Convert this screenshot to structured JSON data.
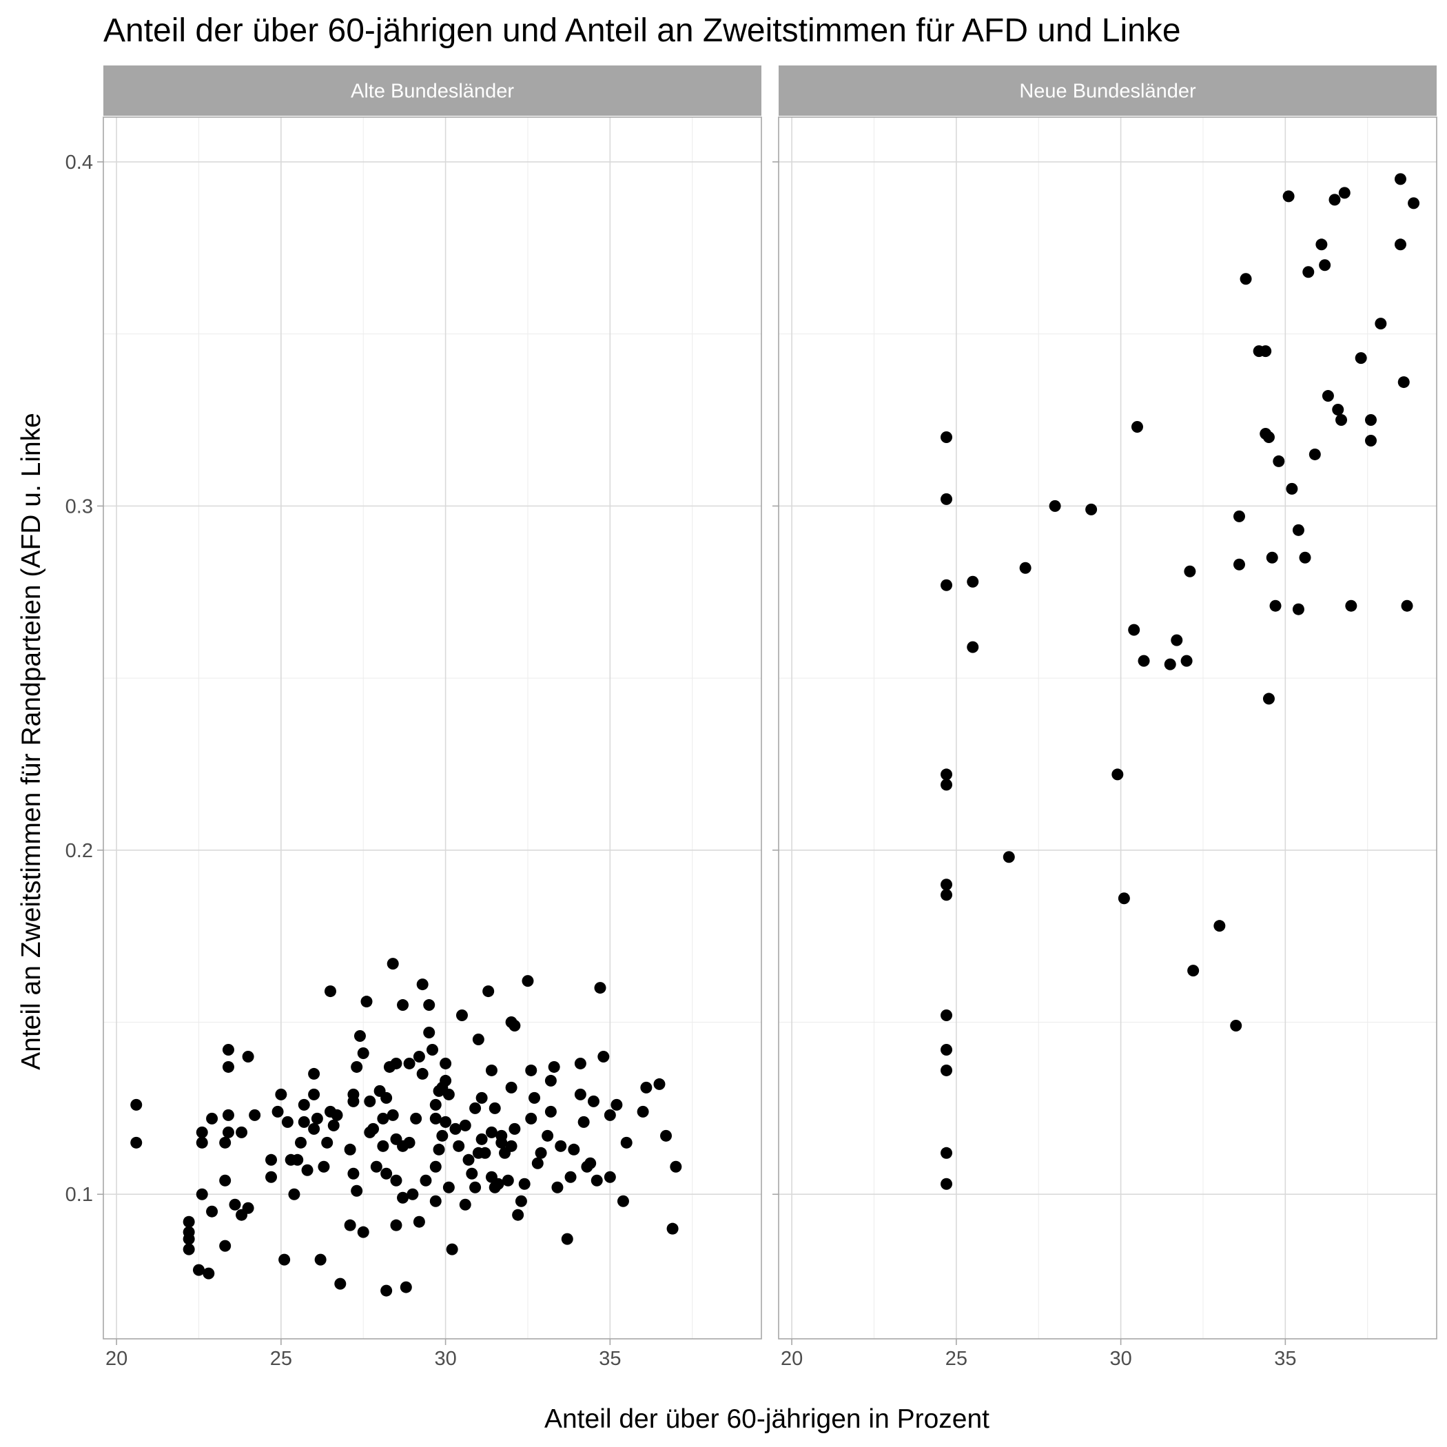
{
  "chart_data": {
    "type": "scatter",
    "title": "Anteil der über 60-jährigen und Anteil an Zweitstimmen für AFD und Linke",
    "xlabel": "Anteil der über 60-jährigen in Prozent",
    "ylabel": "Anteil an Zweitstimmen für Randparteien (AFD u. Linke",
    "xlim": [
      19.6,
      39.6
    ],
    "ylim": [
      0.058,
      0.413
    ],
    "x_ticks": [
      20,
      25,
      30,
      35
    ],
    "x_tick_labels": [
      "20",
      "25",
      "30",
      "35"
    ],
    "y_ticks": [
      0.1,
      0.2,
      0.3,
      0.4
    ],
    "y_tick_labels": [
      "0.1",
      "0.2",
      "0.3",
      "0.4"
    ],
    "grid": true,
    "colors": {
      "point": "#000000",
      "strip": "#a6a6a6",
      "grid": "#d9d9d9"
    },
    "facets": [
      {
        "label": "Alte Bundesländer",
        "points": [
          [
            20.6,
            0.126
          ],
          [
            20.6,
            0.115
          ],
          [
            22.2,
            0.087
          ],
          [
            22.2,
            0.084
          ],
          [
            22.2,
            0.089
          ],
          [
            22.2,
            0.092
          ],
          [
            22.5,
            0.078
          ],
          [
            22.6,
            0.1
          ],
          [
            22.6,
            0.115
          ],
          [
            22.6,
            0.118
          ],
          [
            22.8,
            0.077
          ],
          [
            22.9,
            0.095
          ],
          [
            22.9,
            0.122
          ],
          [
            23.3,
            0.085
          ],
          [
            23.3,
            0.104
          ],
          [
            23.3,
            0.115
          ],
          [
            23.4,
            0.118
          ],
          [
            23.4,
            0.123
          ],
          [
            23.4,
            0.137
          ],
          [
            23.4,
            0.142
          ],
          [
            23.6,
            0.097
          ],
          [
            23.8,
            0.094
          ],
          [
            23.8,
            0.118
          ],
          [
            24.0,
            0.096
          ],
          [
            24.0,
            0.14
          ],
          [
            24.2,
            0.123
          ],
          [
            24.7,
            0.105
          ],
          [
            24.7,
            0.11
          ],
          [
            24.9,
            0.124
          ],
          [
            25.0,
            0.129
          ],
          [
            25.1,
            0.081
          ],
          [
            25.2,
            0.121
          ],
          [
            25.3,
            0.11
          ],
          [
            25.4,
            0.1
          ],
          [
            25.5,
            0.11
          ],
          [
            25.6,
            0.115
          ],
          [
            25.7,
            0.126
          ],
          [
            25.7,
            0.121
          ],
          [
            25.8,
            0.107
          ],
          [
            26.0,
            0.135
          ],
          [
            26.0,
            0.119
          ],
          [
            26.0,
            0.129
          ],
          [
            26.1,
            0.122
          ],
          [
            26.2,
            0.081
          ],
          [
            26.3,
            0.108
          ],
          [
            26.4,
            0.115
          ],
          [
            26.5,
            0.159
          ],
          [
            26.5,
            0.124
          ],
          [
            26.6,
            0.12
          ],
          [
            26.7,
            0.123
          ],
          [
            26.8,
            0.074
          ],
          [
            27.1,
            0.091
          ],
          [
            27.1,
            0.113
          ],
          [
            27.2,
            0.106
          ],
          [
            27.2,
            0.129
          ],
          [
            27.2,
            0.127
          ],
          [
            27.3,
            0.101
          ],
          [
            27.3,
            0.137
          ],
          [
            27.4,
            0.146
          ],
          [
            27.5,
            0.089
          ],
          [
            27.5,
            0.141
          ],
          [
            27.6,
            0.156
          ],
          [
            27.7,
            0.127
          ],
          [
            27.7,
            0.118
          ],
          [
            27.8,
            0.119
          ],
          [
            27.9,
            0.108
          ],
          [
            28.0,
            0.13
          ],
          [
            28.1,
            0.114
          ],
          [
            28.1,
            0.122
          ],
          [
            28.2,
            0.072
          ],
          [
            28.2,
            0.106
          ],
          [
            28.2,
            0.128
          ],
          [
            28.3,
            0.137
          ],
          [
            28.4,
            0.167
          ],
          [
            28.4,
            0.123
          ],
          [
            28.5,
            0.104
          ],
          [
            28.5,
            0.116
          ],
          [
            28.5,
            0.138
          ],
          [
            28.5,
            0.091
          ],
          [
            28.7,
            0.099
          ],
          [
            28.7,
            0.114
          ],
          [
            28.7,
            0.155
          ],
          [
            28.8,
            0.073
          ],
          [
            28.9,
            0.138
          ],
          [
            28.9,
            0.115
          ],
          [
            29.0,
            0.1
          ],
          [
            29.1,
            0.122
          ],
          [
            29.2,
            0.14
          ],
          [
            29.2,
            0.092
          ],
          [
            29.3,
            0.135
          ],
          [
            29.3,
            0.161
          ],
          [
            29.4,
            0.104
          ],
          [
            29.5,
            0.155
          ],
          [
            29.5,
            0.147
          ],
          [
            29.6,
            0.142
          ],
          [
            29.7,
            0.122
          ],
          [
            29.7,
            0.098
          ],
          [
            29.7,
            0.126
          ],
          [
            29.7,
            0.108
          ],
          [
            29.8,
            0.113
          ],
          [
            29.8,
            0.13
          ],
          [
            29.9,
            0.117
          ],
          [
            29.9,
            0.131
          ],
          [
            30.0,
            0.121
          ],
          [
            30.0,
            0.138
          ],
          [
            30.0,
            0.133
          ],
          [
            30.1,
            0.102
          ],
          [
            30.1,
            0.129
          ],
          [
            30.2,
            0.084
          ],
          [
            30.3,
            0.119
          ],
          [
            30.4,
            0.114
          ],
          [
            30.5,
            0.152
          ],
          [
            30.6,
            0.12
          ],
          [
            30.6,
            0.097
          ],
          [
            30.7,
            0.11
          ],
          [
            30.8,
            0.106
          ],
          [
            30.9,
            0.102
          ],
          [
            30.9,
            0.125
          ],
          [
            31.0,
            0.145
          ],
          [
            31.0,
            0.112
          ],
          [
            31.1,
            0.128
          ],
          [
            31.1,
            0.116
          ],
          [
            31.2,
            0.112
          ],
          [
            31.3,
            0.159
          ],
          [
            31.4,
            0.105
          ],
          [
            31.4,
            0.136
          ],
          [
            31.4,
            0.118
          ],
          [
            31.5,
            0.102
          ],
          [
            31.5,
            0.125
          ],
          [
            31.6,
            0.103
          ],
          [
            31.7,
            0.115
          ],
          [
            31.7,
            0.117
          ],
          [
            31.8,
            0.112
          ],
          [
            31.9,
            0.104
          ],
          [
            32.0,
            0.131
          ],
          [
            32.0,
            0.114
          ],
          [
            32.0,
            0.15
          ],
          [
            32.1,
            0.119
          ],
          [
            32.1,
            0.149
          ],
          [
            32.2,
            0.094
          ],
          [
            32.3,
            0.098
          ],
          [
            32.4,
            0.103
          ],
          [
            32.5,
            0.162
          ],
          [
            32.6,
            0.136
          ],
          [
            32.6,
            0.122
          ],
          [
            32.7,
            0.128
          ],
          [
            32.8,
            0.109
          ],
          [
            32.9,
            0.112
          ],
          [
            33.1,
            0.117
          ],
          [
            33.2,
            0.133
          ],
          [
            33.2,
            0.124
          ],
          [
            33.3,
            0.137
          ],
          [
            33.4,
            0.102
          ],
          [
            33.5,
            0.114
          ],
          [
            33.7,
            0.087
          ],
          [
            33.8,
            0.105
          ],
          [
            33.9,
            0.113
          ],
          [
            34.1,
            0.129
          ],
          [
            34.1,
            0.138
          ],
          [
            34.2,
            0.121
          ],
          [
            34.3,
            0.108
          ],
          [
            34.4,
            0.109
          ],
          [
            34.5,
            0.127
          ],
          [
            34.6,
            0.104
          ],
          [
            34.7,
            0.16
          ],
          [
            34.8,
            0.14
          ],
          [
            35.0,
            0.123
          ],
          [
            35.0,
            0.105
          ],
          [
            35.2,
            0.126
          ],
          [
            35.4,
            0.098
          ],
          [
            35.5,
            0.115
          ],
          [
            36.0,
            0.124
          ],
          [
            36.1,
            0.131
          ],
          [
            36.5,
            0.132
          ],
          [
            36.7,
            0.117
          ],
          [
            36.9,
            0.09
          ],
          [
            37.0,
            0.108
          ]
        ]
      },
      {
        "label": "Neue Bundesländer",
        "points": [
          [
            24.7,
            0.32
          ],
          [
            24.7,
            0.302
          ],
          [
            24.7,
            0.277
          ],
          [
            24.7,
            0.222
          ],
          [
            24.7,
            0.219
          ],
          [
            24.7,
            0.19
          ],
          [
            24.7,
            0.187
          ],
          [
            24.7,
            0.152
          ],
          [
            24.7,
            0.142
          ],
          [
            24.7,
            0.136
          ],
          [
            24.7,
            0.112
          ],
          [
            24.7,
            0.103
          ],
          [
            25.5,
            0.278
          ],
          [
            25.5,
            0.259
          ],
          [
            26.6,
            0.198
          ],
          [
            27.1,
            0.282
          ],
          [
            28.0,
            0.3
          ],
          [
            29.1,
            0.299
          ],
          [
            29.9,
            0.222
          ],
          [
            30.1,
            0.186
          ],
          [
            30.4,
            0.264
          ],
          [
            30.5,
            0.323
          ],
          [
            30.7,
            0.255
          ],
          [
            31.5,
            0.254
          ],
          [
            31.7,
            0.261
          ],
          [
            32.0,
            0.255
          ],
          [
            32.1,
            0.281
          ],
          [
            32.2,
            0.165
          ],
          [
            33.0,
            0.178
          ],
          [
            33.5,
            0.149
          ],
          [
            33.6,
            0.297
          ],
          [
            33.6,
            0.283
          ],
          [
            33.8,
            0.366
          ],
          [
            34.2,
            0.345
          ],
          [
            34.4,
            0.345
          ],
          [
            34.4,
            0.321
          ],
          [
            34.5,
            0.32
          ],
          [
            34.5,
            0.244
          ],
          [
            34.6,
            0.285
          ],
          [
            34.7,
            0.271
          ],
          [
            34.8,
            0.313
          ],
          [
            35.1,
            0.39
          ],
          [
            35.2,
            0.305
          ],
          [
            35.4,
            0.293
          ],
          [
            35.4,
            0.27
          ],
          [
            35.6,
            0.285
          ],
          [
            35.7,
            0.368
          ],
          [
            35.9,
            0.315
          ],
          [
            36.1,
            0.376
          ],
          [
            36.2,
            0.37
          ],
          [
            36.3,
            0.332
          ],
          [
            36.5,
            0.389
          ],
          [
            36.6,
            0.328
          ],
          [
            36.7,
            0.325
          ],
          [
            36.8,
            0.391
          ],
          [
            37.0,
            0.271
          ],
          [
            37.3,
            0.343
          ],
          [
            37.6,
            0.325
          ],
          [
            37.6,
            0.319
          ],
          [
            37.9,
            0.353
          ],
          [
            38.5,
            0.395
          ],
          [
            38.5,
            0.376
          ],
          [
            38.6,
            0.336
          ],
          [
            38.7,
            0.271
          ],
          [
            38.9,
            0.388
          ]
        ]
      }
    ]
  }
}
